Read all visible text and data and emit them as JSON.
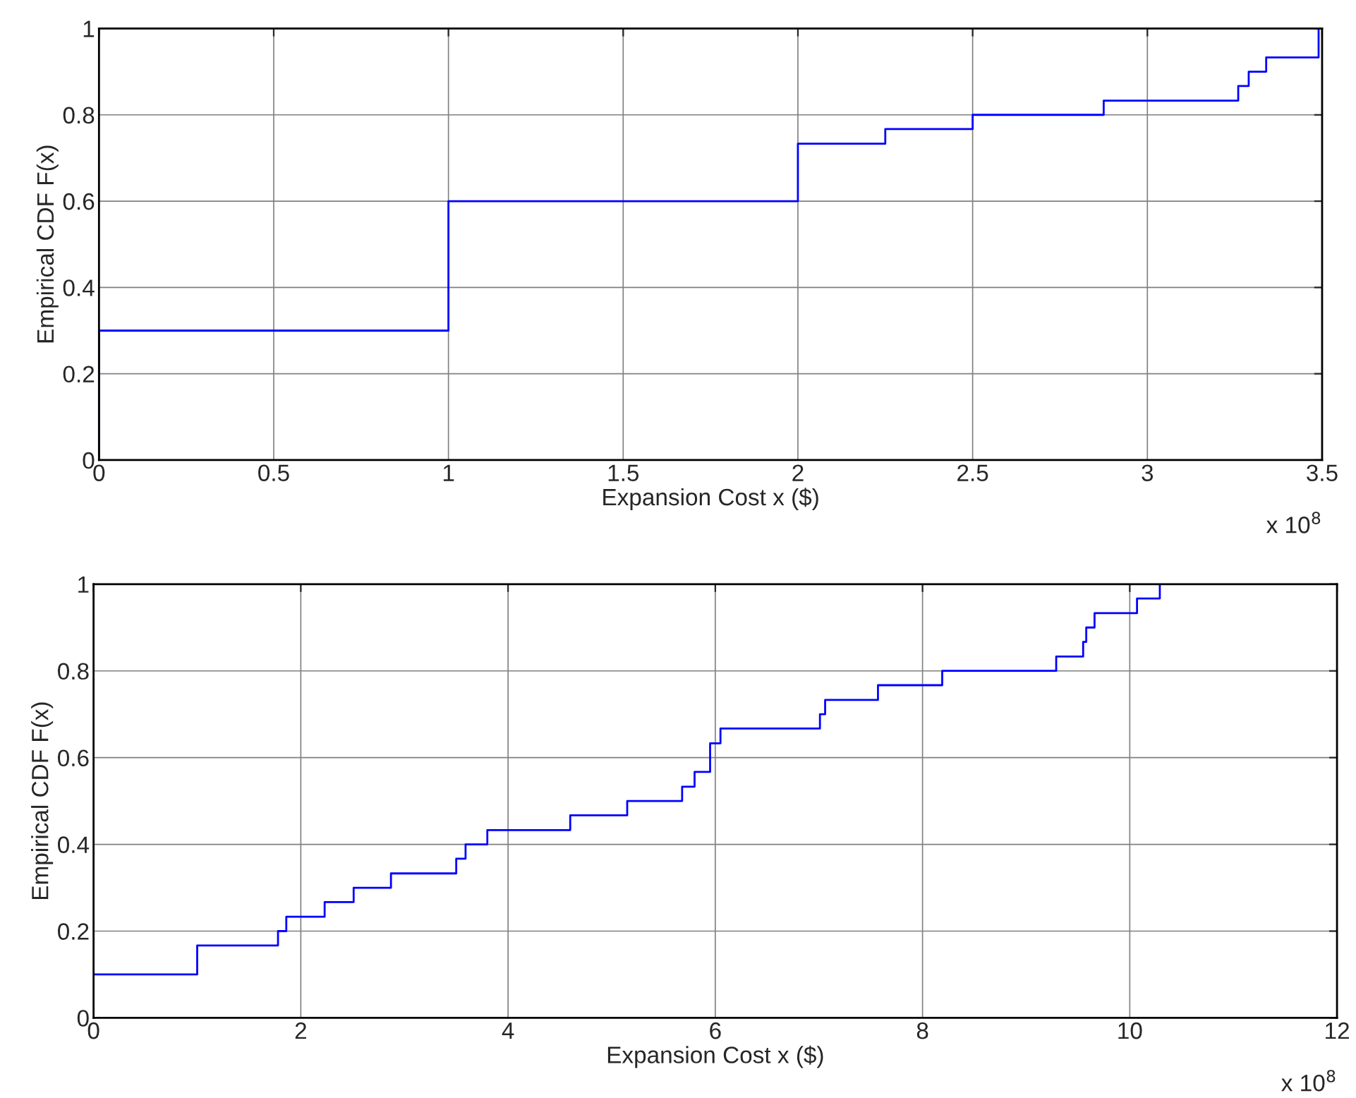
{
  "chart_data": [
    {
      "type": "step",
      "xlabel": "Expansion Cost x ($)",
      "ylabel": "Empirical CDF F(x)",
      "series": [
        {
          "color": "#0000ff",
          "x": [
            0,
            0,
            1,
            2,
            2.25,
            2.5,
            2.875,
            3.26,
            3.29,
            3.34,
            3.49
          ],
          "values": [
            0,
            0.3,
            0.6,
            0.733,
            0.767,
            0.8,
            0.833,
            0.867,
            0.9,
            0.933,
            1.0
          ]
        }
      ],
      "xlim": [
        0,
        3.5
      ],
      "xticks": [
        0,
        0.5,
        1,
        1.5,
        2,
        2.5,
        3,
        3.5
      ],
      "ylim": [
        0,
        1
      ],
      "yticks": [
        0,
        0.2,
        0.4,
        0.6,
        0.8,
        1
      ],
      "grid": true,
      "line_style": "solid",
      "annotations": [
        "x 10$^{8}$"
      ]
    },
    {
      "type": "step",
      "xlabel": "Expansion Cost x ($)",
      "ylabel": "Empirical CDF F(x)",
      "series": [
        {
          "color": "#0000ff",
          "x": [
            0,
            0,
            1,
            1.78,
            1.86,
            2.23,
            2.51,
            2.87,
            3.5,
            3.59,
            3.8,
            4.6,
            5.15,
            5.68,
            5.8,
            5.95,
            6.05,
            7.01,
            7.06,
            7.57,
            8.19,
            9.29,
            9.55,
            9.58,
            9.66,
            10.07,
            10.29
          ],
          "values": [
            0,
            0.1,
            0.167,
            0.2,
            0.233,
            0.267,
            0.3,
            0.333,
            0.367,
            0.4,
            0.433,
            0.467,
            0.5,
            0.533,
            0.567,
            0.633,
            0.667,
            0.7,
            0.733,
            0.767,
            0.8,
            0.833,
            0.867,
            0.9,
            0.933,
            0.967,
            1.0
          ]
        }
      ],
      "xlim": [
        0,
        12
      ],
      "xticks": [
        0,
        2,
        4,
        6,
        8,
        10,
        12
      ],
      "ylim": [
        0,
        1
      ],
      "yticks": [
        0,
        0.2,
        0.4,
        0.6,
        0.8,
        1
      ],
      "grid": true,
      "line_style": "solid",
      "annotations": [
        "x 10$^{8}$"
      ]
    }
  ]
}
